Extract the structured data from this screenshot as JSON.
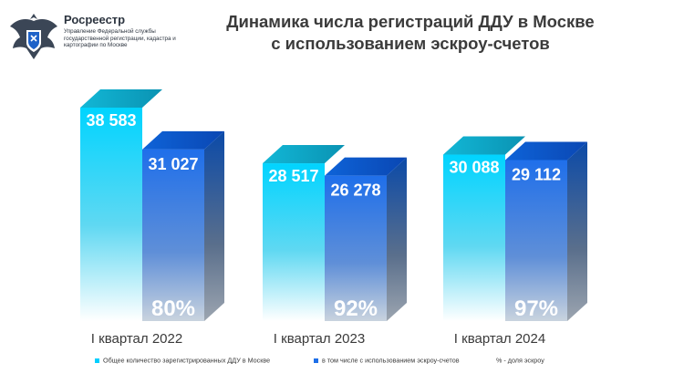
{
  "header": {
    "org_name": "Росреестр",
    "org_desc": "Управление Федеральной службы государственной регистрации, кадастра и картографии по Москве"
  },
  "chart_data": {
    "type": "bar",
    "title_line1": "Динамика числа регистраций ДДУ в Москве",
    "title_line2": "с использованием эскроу-счетов",
    "categories": [
      "I квартал 2022",
      "I квартал 2023",
      "I квартал 2024"
    ],
    "series": [
      {
        "name": "Общее количество зарегистрированных ДДУ в Москве",
        "values": [
          38583,
          28517,
          30088
        ],
        "labels": [
          "38 583",
          "28 517",
          "30 088"
        ],
        "color": "#00cfff"
      },
      {
        "name": "в том числе с использованием эскроу-счетов",
        "values": [
          31027,
          26278,
          29112
        ],
        "labels": [
          "31 027",
          "26 278",
          "29 112"
        ],
        "color": "#1e6fe8"
      }
    ],
    "percent_labels": [
      "80%",
      "92%",
      "97%"
    ],
    "percent_note": "% - доля эскроу",
    "ylim": [
      0,
      38583
    ]
  },
  "colors": {
    "total_front": "#00cfff",
    "escrow_front": "#1e6fe8",
    "total_top": "#0aa6c4",
    "escrow_top": "#0a52c9",
    "title": "#3b3b3b"
  }
}
